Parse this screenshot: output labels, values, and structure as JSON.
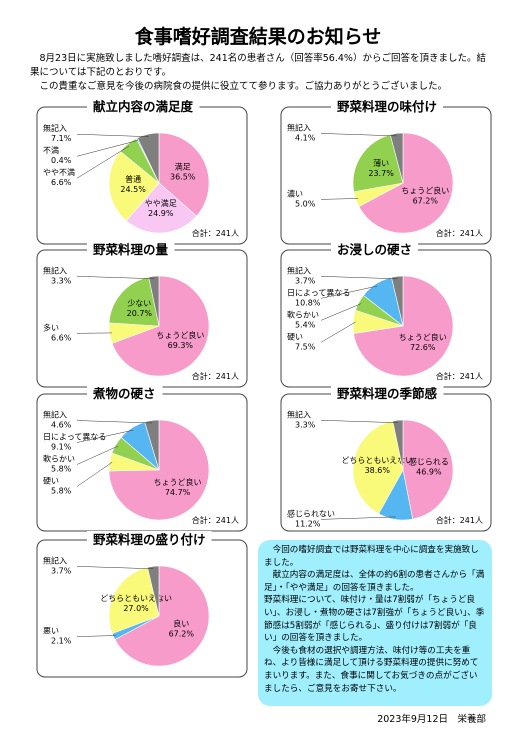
{
  "header": {
    "title": "食事嗜好調査結果のお知らせ",
    "paragraphs": [
      "8月23日に実施致しました嗜好調査は、241名の患者さん（回答率56.4%）からご回答を頂きました。結果については下記のとおりです。",
      "この貴重なご意見を今後の病院食の提供に役立てて参ります。ご協力ありがとうございました。"
    ]
  },
  "chart_data": [
    {
      "type": "pie",
      "title": "献立内容の満足度",
      "note": "合計：241人",
      "categories": [
        "満足",
        "やや満足",
        "普通",
        "やや不満",
        "不満",
        "無記入"
      ],
      "values": [
        36.5,
        24.9,
        24.5,
        6.6,
        0.4,
        7.1
      ],
      "value_labels": [
        "36.5%",
        "24.9%",
        "24.5%",
        "6.6%",
        "0.4%",
        "7.1%"
      ],
      "colors": [
        "#f79bcb",
        "#f8c8f2",
        "#f9f97a",
        "#92d050",
        "#55b6f2",
        "#7f7f7f"
      ]
    },
    {
      "type": "pie",
      "title": "野菜料理の味付け",
      "note": "合計：241人",
      "categories": [
        "ちょうど良い",
        "濃い",
        "薄い",
        "無記入"
      ],
      "values": [
        67.2,
        5.0,
        23.7,
        4.1
      ],
      "value_labels": [
        "67.2%",
        "5.0%",
        "23.7%",
        "4.1%"
      ],
      "colors": [
        "#f79bcb",
        "#f9f97a",
        "#92d050",
        "#7f7f7f"
      ]
    },
    {
      "type": "pie",
      "title": "野菜料理の量",
      "note": "合計：241人",
      "categories": [
        "ちょうど良い",
        "多い",
        "少ない",
        "無記入"
      ],
      "values": [
        69.3,
        6.6,
        20.7,
        3.3
      ],
      "value_labels": [
        "69.3%",
        "6.6%",
        "20.7%",
        "3.3%"
      ],
      "colors": [
        "#f79bcb",
        "#f9f97a",
        "#92d050",
        "#7f7f7f"
      ]
    },
    {
      "type": "pie",
      "title": "お浸しの硬さ",
      "note": "合計：241人",
      "categories": [
        "ちょうど良い",
        "硬い",
        "軟らかい",
        "日によって異なる",
        "無記入"
      ],
      "values": [
        72.6,
        7.5,
        5.4,
        10.8,
        3.7
      ],
      "value_labels": [
        "72.6%",
        "7.5%",
        "5.4%",
        "10.8%",
        "3.7%"
      ],
      "colors": [
        "#f79bcb",
        "#f9f97a",
        "#92d050",
        "#55b6f2",
        "#7f7f7f"
      ]
    },
    {
      "type": "pie",
      "title": "煮物の硬さ",
      "note": "合計：241人",
      "categories": [
        "ちょうど良い",
        "硬い",
        "軟らかい",
        "日によって異なる",
        "無記入"
      ],
      "values": [
        74.7,
        5.8,
        5.8,
        9.1,
        4.6
      ],
      "value_labels": [
        "74.7%",
        "5.8%",
        "5.8%",
        "9.1%",
        "4.6%"
      ],
      "colors": [
        "#f79bcb",
        "#f9f97a",
        "#92d050",
        "#55b6f2",
        "#7f7f7f"
      ]
    },
    {
      "type": "pie",
      "title": "野菜料理の季節感",
      "note": "合計：241人",
      "categories": [
        "感じられる",
        "感じられない",
        "どちらともいえない",
        "無記入"
      ],
      "values": [
        46.9,
        11.2,
        38.6,
        3.3
      ],
      "value_labels": [
        "46.9%",
        "11.2%",
        "38.6%",
        "3.3%"
      ],
      "colors": [
        "#f79bcb",
        "#55b6f2",
        "#f9f97a",
        "#7f7f7f"
      ]
    },
    {
      "type": "pie",
      "title": "野菜料理の盛り付け",
      "categories": [
        "良い",
        "悪い",
        "どちらともいえない",
        "無記入"
      ],
      "values": [
        67.2,
        2.1,
        27.0,
        3.7
      ],
      "value_labels": [
        "67.2%",
        "2.1%",
        "27.0%",
        "3.7%"
      ],
      "colors": [
        "#f79bcb",
        "#55b6f2",
        "#f9f97a",
        "#7f7f7f"
      ]
    }
  ],
  "summary": {
    "paragraphs": [
      "今回の嗜好調査では野菜料理を中心に調査を実施致しました。",
      "献立内容の満足度は、全体の約6割の患者さんから「満足」・「やや満足」の回答を頂きました。",
      "野菜料理について、味付け・量は7割弱が「ちょうど良い」、お浸し・煮物の硬さは7割強が「ちょうど良い」、季節感は5割弱が「感じられる」、盛り付けは7割弱が「良い」の回答を頂きました。",
      "今後も食材の選択や調理方法、味付け等の工夫を重ね、より皆様に満足して頂ける野菜料理の提供に努めてまいります。また、食事に関してお気づきの点がございましたら、ご意見をお寄せ下さい。"
    ]
  },
  "footer": "2023年9月12日　栄養部"
}
